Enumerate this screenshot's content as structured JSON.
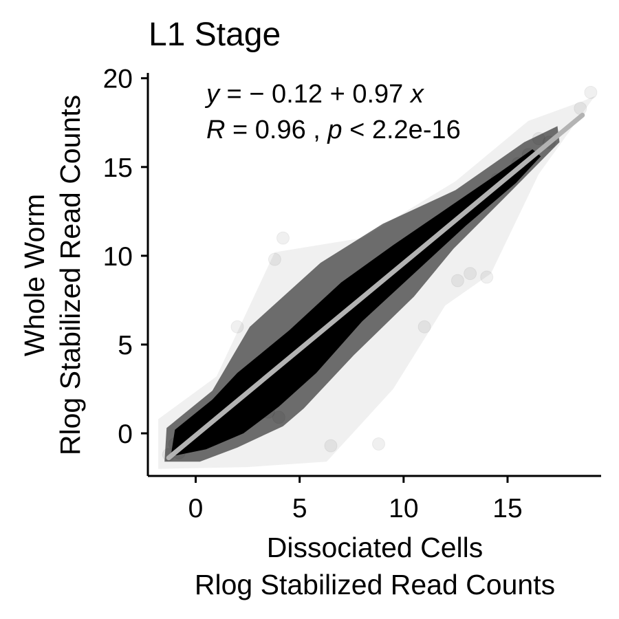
{
  "chart_data": {
    "type": "scatter",
    "title": "L1 Stage",
    "xlabel": [
      "Dissociated Cells",
      "Rlog Stabilized Read Counts"
    ],
    "ylabel": [
      "Whole Worm",
      "Rlog Stabilized Read Counts"
    ],
    "xlim": [
      -2.3,
      19.5
    ],
    "ylim": [
      -2.4,
      20.3
    ],
    "x_ticks": [
      0,
      5,
      10,
      15
    ],
    "y_ticks": [
      0,
      5,
      10,
      15,
      20
    ],
    "x_tick_labels": [
      "0",
      "5",
      "10",
      "15"
    ],
    "y_tick_labels": [
      "0",
      "5",
      "10",
      "15",
      "20"
    ],
    "grid": false,
    "point_color": "#000000",
    "point_alpha": 0.06,
    "regression": {
      "intercept": -0.12,
      "slope": 0.97,
      "x_range": [
        -1.3,
        18.6
      ],
      "color": "#b3b3b3"
    },
    "annotation": {
      "equation": {
        "y": "y",
        "eq": " = − 0.12 + 0.97 ",
        "x": "x"
      },
      "stats": {
        "r": "R",
        "r_val": " = 0.96 , ",
        "p": "p",
        "p_val": " < 2.2e-16"
      }
    },
    "points_sample": [
      [
        -1.3,
        -1.2
      ],
      [
        -1.0,
        -0.6
      ],
      [
        -0.8,
        -1.1
      ],
      [
        -0.5,
        0.0
      ],
      [
        0.0,
        -0.2
      ],
      [
        0.5,
        1.0
      ],
      [
        1.0,
        0.6
      ],
      [
        1.5,
        1.8
      ],
      [
        2.0,
        1.4
      ],
      [
        2.5,
        3.0
      ],
      [
        3.0,
        2.4
      ],
      [
        3.5,
        1.2
      ],
      [
        4.0,
        0.9
      ],
      [
        4.5,
        5.0
      ],
      [
        5.0,
        4.6
      ],
      [
        5.5,
        5.5
      ],
      [
        6.0,
        6.3
      ],
      [
        6.5,
        5.9
      ],
      [
        7.0,
        7.2
      ],
      [
        7.5,
        6.6
      ],
      [
        8.0,
        8.1
      ],
      [
        8.5,
        7.8
      ],
      [
        9.0,
        8.7
      ],
      [
        9.5,
        9.4
      ],
      [
        10.0,
        9.5
      ],
      [
        10.5,
        10.4
      ],
      [
        11.0,
        10.4
      ],
      [
        11.5,
        11.4
      ],
      [
        12.0,
        11.2
      ],
      [
        12.5,
        12.5
      ],
      [
        13.0,
        12.4
      ],
      [
        13.5,
        13.3
      ],
      [
        14.0,
        13.4
      ],
      [
        14.5,
        14.3
      ],
      [
        15.0,
        14.5
      ],
      [
        15.5,
        15.2
      ],
      [
        16.0,
        15.7
      ],
      [
        16.5,
        16.6
      ],
      [
        17.0,
        16.4
      ],
      [
        18.5,
        18.3
      ],
      [
        19.0,
        19.2
      ],
      [
        12.6,
        8.6
      ],
      [
        13.2,
        9.0
      ],
      [
        14.0,
        8.8
      ],
      [
        3.8,
        9.8
      ],
      [
        6.5,
        -0.7
      ],
      [
        8.8,
        -0.6
      ],
      [
        4.2,
        11.0
      ],
      [
        11.0,
        6.0
      ],
      [
        2.0,
        6.0
      ]
    ]
  }
}
